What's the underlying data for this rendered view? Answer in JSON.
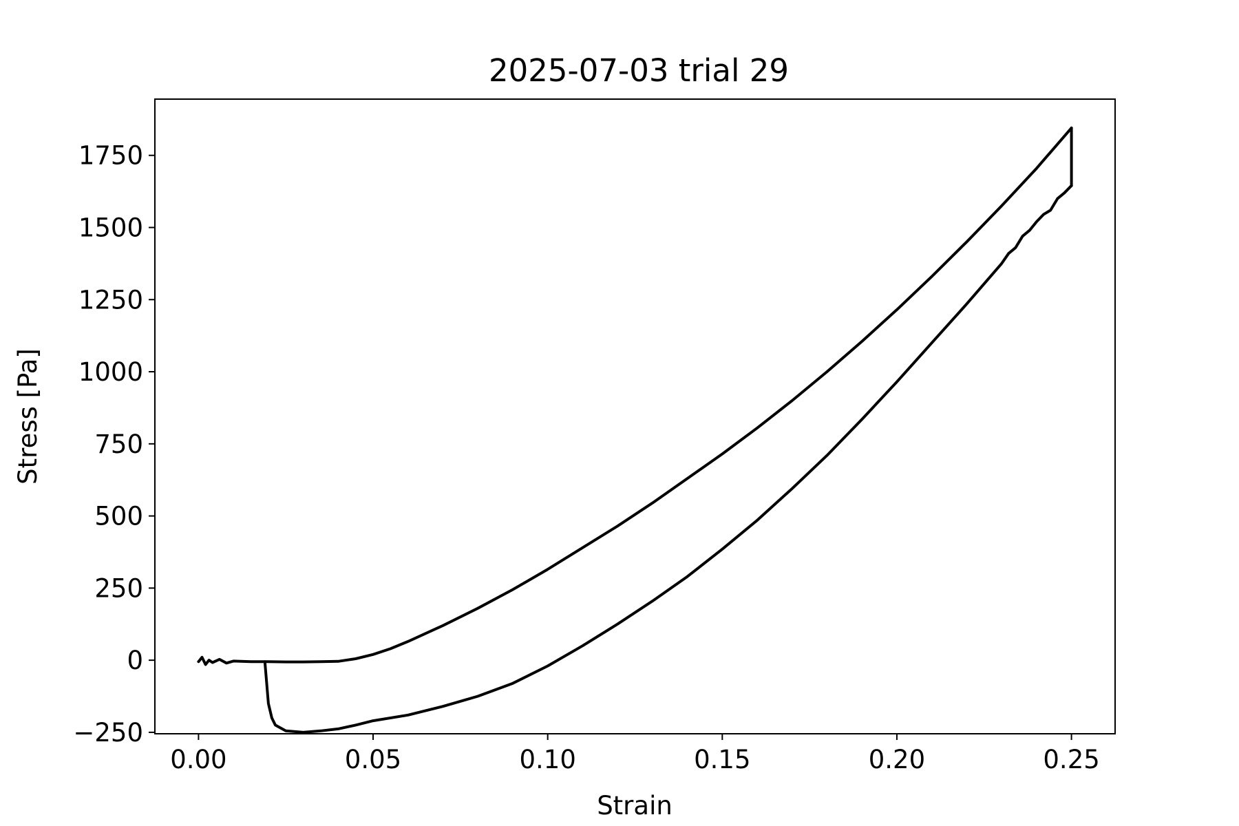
{
  "chart_data": {
    "type": "line",
    "title": "2025-07-03 trial 29",
    "xlabel": "Strain",
    "ylabel": "Stress [Pa]",
    "xlim": [
      -0.0125,
      0.2625
    ],
    "ylim": [
      -255,
      1945
    ],
    "xticks": [
      0.0,
      0.05,
      0.1,
      0.15,
      0.2,
      0.25
    ],
    "xtick_labels": [
      "0.00",
      "0.05",
      "0.10",
      "0.15",
      "0.20",
      "0.25"
    ],
    "yticks": [
      -250,
      0,
      250,
      500,
      750,
      1000,
      1250,
      1500,
      1750
    ],
    "ytick_labels": [
      "−250",
      "0",
      "250",
      "500",
      "750",
      "1000",
      "1250",
      "1500",
      "1750"
    ],
    "grid": false,
    "line_color": "#000000",
    "series": [
      {
        "segment": "loading",
        "x": [
          0.0,
          0.001,
          0.002,
          0.003,
          0.004,
          0.006,
          0.008,
          0.01,
          0.015,
          0.02,
          0.025,
          0.03,
          0.035,
          0.04,
          0.045,
          0.05,
          0.055,
          0.06,
          0.07,
          0.08,
          0.09,
          0.1,
          0.11,
          0.12,
          0.13,
          0.14,
          0.15,
          0.16,
          0.17,
          0.18,
          0.19,
          0.2,
          0.21,
          0.22,
          0.23,
          0.24,
          0.25
        ],
        "y": [
          -5,
          10,
          -15,
          0,
          -8,
          3,
          -10,
          -3,
          -5,
          -5,
          -6,
          -6,
          -5,
          -4,
          5,
          20,
          40,
          65,
          120,
          180,
          245,
          315,
          390,
          465,
          545,
          630,
          715,
          805,
          900,
          1000,
          1105,
          1215,
          1330,
          1450,
          1575,
          1705,
          1845
        ]
      },
      {
        "segment": "drop",
        "x": [
          0.25,
          0.25
        ],
        "y": [
          1845,
          1645
        ]
      },
      {
        "segment": "unloading",
        "x": [
          0.25,
          0.248,
          0.246,
          0.244,
          0.242,
          0.24,
          0.238,
          0.236,
          0.234,
          0.232,
          0.23,
          0.22,
          0.21,
          0.2,
          0.19,
          0.18,
          0.17,
          0.16,
          0.15,
          0.14,
          0.13,
          0.12,
          0.11,
          0.1,
          0.09,
          0.08,
          0.07,
          0.06,
          0.05,
          0.045,
          0.04,
          0.035,
          0.03,
          0.025,
          0.022,
          0.021,
          0.02,
          0.019
        ],
        "y": [
          1645,
          1620,
          1600,
          1560,
          1545,
          1520,
          1490,
          1470,
          1430,
          1410,
          1375,
          1235,
          1100,
          965,
          835,
          710,
          595,
          485,
          385,
          290,
          205,
          125,
          50,
          -20,
          -80,
          -125,
          -160,
          -190,
          -210,
          -225,
          -238,
          -245,
          -250,
          -245,
          -225,
          -200,
          -150,
          -5
        ]
      }
    ]
  }
}
